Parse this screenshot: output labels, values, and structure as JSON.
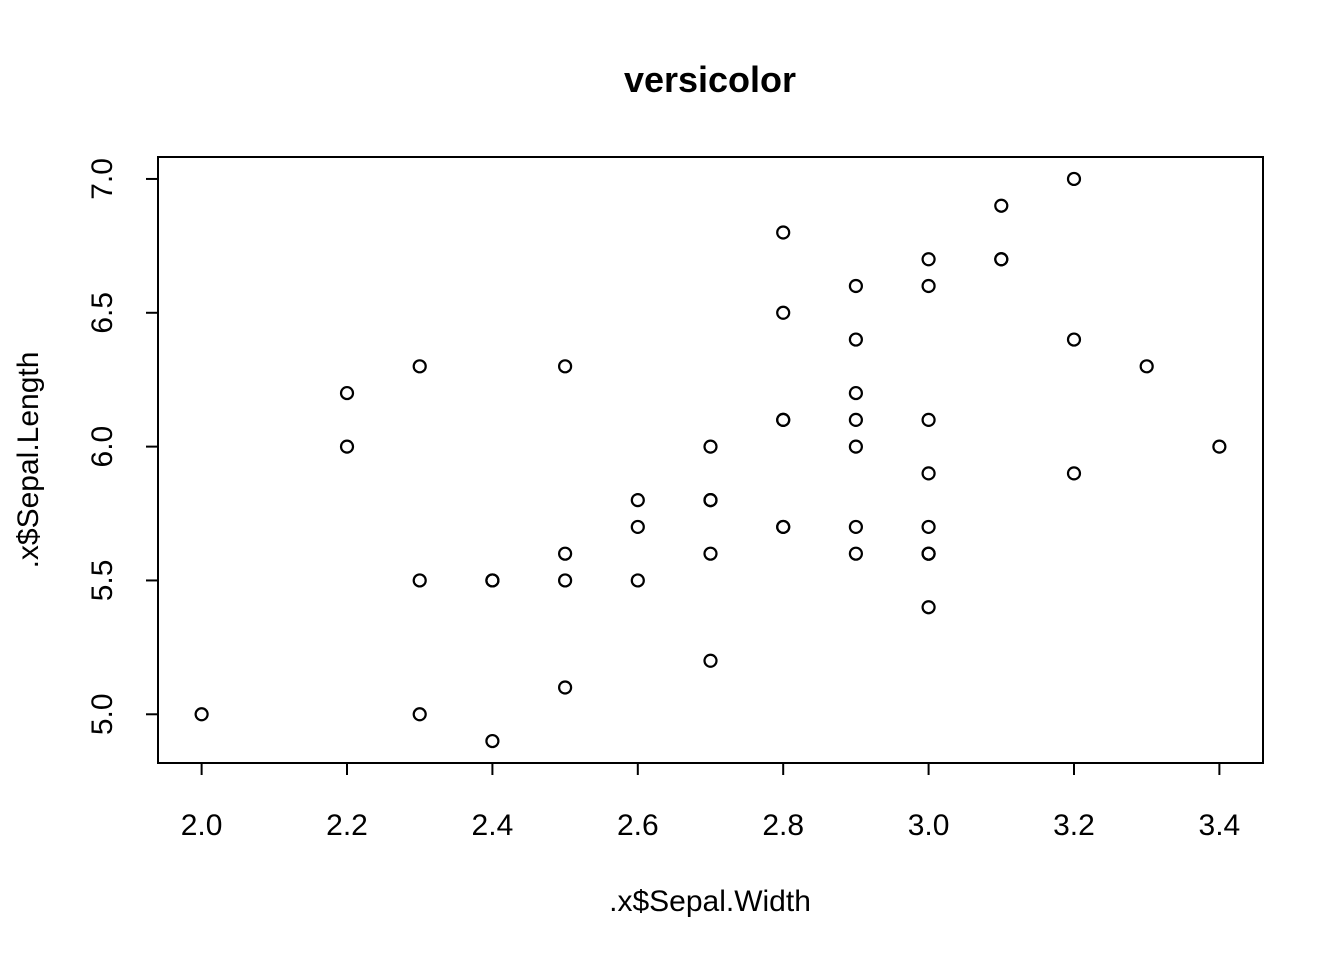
{
  "chart_data": {
    "type": "scatter",
    "title": "versicolor",
    "xlabel": ".x$Sepal.Width",
    "ylabel": ".x$Sepal.Length",
    "xlim": [
      1.94,
      3.46
    ],
    "ylim": [
      4.818,
      7.082
    ],
    "grid": false,
    "legend": "none",
    "x_ticks": [
      {
        "value": 2.0,
        "label": "2.0"
      },
      {
        "value": 2.2,
        "label": "2.2"
      },
      {
        "value": 2.4,
        "label": "2.4"
      },
      {
        "value": 2.6,
        "label": "2.6"
      },
      {
        "value": 2.8,
        "label": "2.8"
      },
      {
        "value": 3.0,
        "label": "3.0"
      },
      {
        "value": 3.2,
        "label": "3.2"
      },
      {
        "value": 3.4,
        "label": "3.4"
      }
    ],
    "y_ticks": [
      {
        "value": 5.0,
        "label": "5.0"
      },
      {
        "value": 5.5,
        "label": "5.5"
      },
      {
        "value": 6.0,
        "label": "6.0"
      },
      {
        "value": 6.5,
        "label": "6.5"
      },
      {
        "value": 7.0,
        "label": "7.0"
      }
    ],
    "points": [
      {
        "x": 3.2,
        "y": 7.0
      },
      {
        "x": 3.2,
        "y": 6.4
      },
      {
        "x": 3.1,
        "y": 6.9
      },
      {
        "x": 2.3,
        "y": 5.5
      },
      {
        "x": 2.8,
        "y": 6.5
      },
      {
        "x": 2.8,
        "y": 5.7
      },
      {
        "x": 3.3,
        "y": 6.3
      },
      {
        "x": 2.4,
        "y": 4.9
      },
      {
        "x": 2.9,
        "y": 6.6
      },
      {
        "x": 2.7,
        "y": 5.2
      },
      {
        "x": 2.0,
        "y": 5.0
      },
      {
        "x": 3.0,
        "y": 5.9
      },
      {
        "x": 2.2,
        "y": 6.0
      },
      {
        "x": 2.9,
        "y": 6.1
      },
      {
        "x": 2.9,
        "y": 5.6
      },
      {
        "x": 3.1,
        "y": 6.7
      },
      {
        "x": 3.0,
        "y": 5.6
      },
      {
        "x": 2.7,
        "y": 5.8
      },
      {
        "x": 2.2,
        "y": 6.2
      },
      {
        "x": 2.5,
        "y": 5.6
      },
      {
        "x": 3.2,
        "y": 5.9
      },
      {
        "x": 2.8,
        "y": 6.1
      },
      {
        "x": 2.5,
        "y": 6.3
      },
      {
        "x": 2.8,
        "y": 6.1
      },
      {
        "x": 2.9,
        "y": 6.4
      },
      {
        "x": 3.0,
        "y": 6.6
      },
      {
        "x": 2.8,
        "y": 6.8
      },
      {
        "x": 3.0,
        "y": 6.7
      },
      {
        "x": 2.9,
        "y": 6.0
      },
      {
        "x": 2.6,
        "y": 5.7
      },
      {
        "x": 2.4,
        "y": 5.5
      },
      {
        "x": 2.4,
        "y": 5.5
      },
      {
        "x": 2.7,
        "y": 5.8
      },
      {
        "x": 2.7,
        "y": 6.0
      },
      {
        "x": 3.0,
        "y": 5.4
      },
      {
        "x": 3.4,
        "y": 6.0
      },
      {
        "x": 3.1,
        "y": 6.7
      },
      {
        "x": 2.3,
        "y": 6.3
      },
      {
        "x": 3.0,
        "y": 5.6
      },
      {
        "x": 2.5,
        "y": 5.5
      },
      {
        "x": 2.6,
        "y": 5.5
      },
      {
        "x": 3.0,
        "y": 6.1
      },
      {
        "x": 2.6,
        "y": 5.8
      },
      {
        "x": 2.3,
        "y": 5.0
      },
      {
        "x": 2.7,
        "y": 5.6
      },
      {
        "x": 3.0,
        "y": 5.7
      },
      {
        "x": 2.9,
        "y": 5.7
      },
      {
        "x": 2.9,
        "y": 6.2
      },
      {
        "x": 2.5,
        "y": 5.1
      },
      {
        "x": 2.8,
        "y": 5.7
      }
    ]
  }
}
